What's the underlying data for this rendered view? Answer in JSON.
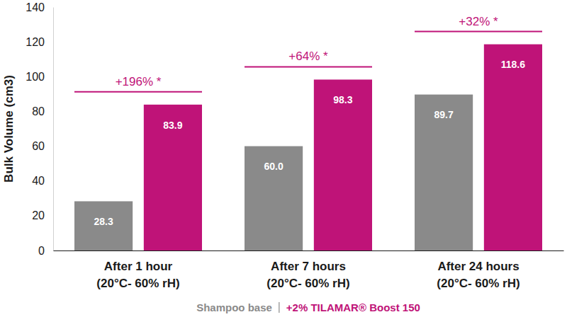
{
  "chart_data": {
    "type": "bar",
    "y_label": "Bulk Volume (cm3)",
    "categories": [
      "After 1 hour\n(20°C- 60% rH)",
      "After 7 hours\n(20°C- 60% rH)",
      "After 24 hours\n(20°C- 60% rH)"
    ],
    "series": [
      {
        "name": "Shampoo base",
        "color": "#8a8a8a",
        "values": [
          28.3,
          60.0,
          89.7
        ],
        "value_labels": [
          "28.3",
          "60.0",
          "89.7"
        ]
      },
      {
        "name": "+2% TILAMAR® Boost 150",
        "color": "#bf1378",
        "values": [
          83.9,
          98.3,
          118.6
        ]
      }
    ],
    "annotations": [
      "+196% *",
      "+64% *",
      "+32% *"
    ],
    "ylim": [
      0,
      140
    ],
    "yticks": [
      0,
      20,
      40,
      60,
      80,
      100,
      120,
      140
    ],
    "grid": false,
    "data_labels": true,
    "legend": "bottom"
  }
}
